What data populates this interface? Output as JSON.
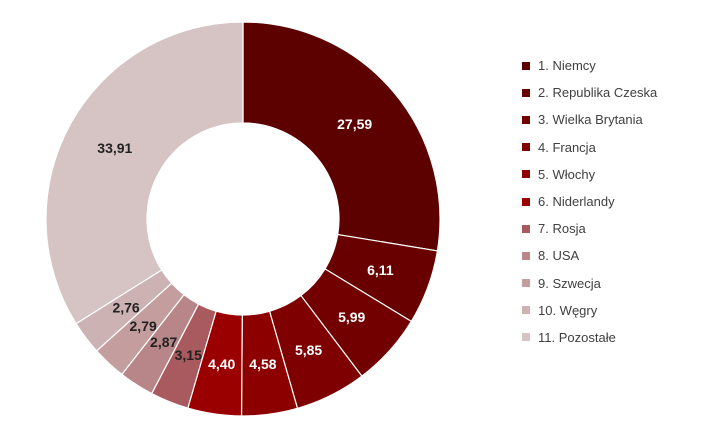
{
  "chart_data": {
    "type": "pie",
    "donut": true,
    "title": "",
    "legend_position": "right",
    "slices": [
      {
        "label": "1. Niemcy",
        "value": 27.59,
        "display": "27,59",
        "color": "#5C0000",
        "label_color": "#ffffff"
      },
      {
        "label": "2. Republika Czeska",
        "value": 6.11,
        "display": "6,11",
        "color": "#680000",
        "label_color": "#ffffff"
      },
      {
        "label": "3. Wielka Brytania",
        "value": 5.99,
        "display": "5,99",
        "color": "#730000",
        "label_color": "#ffffff"
      },
      {
        "label": "4. Francja",
        "value": 5.85,
        "display": "5,85",
        "color": "#7E0000",
        "label_color": "#ffffff"
      },
      {
        "label": "5. Włochy",
        "value": 4.58,
        "display": "4,58",
        "color": "#8C0000",
        "label_color": "#ffffff"
      },
      {
        "label": "6. Niderlandy",
        "value": 4.4,
        "display": "4,40",
        "color": "#9A0000",
        "label_color": "#ffffff"
      },
      {
        "label": "7. Rosja",
        "value": 3.15,
        "display": "3,15",
        "color": "#A85A5E",
        "label_color": "#222222"
      },
      {
        "label": "8. USA",
        "value": 2.87,
        "display": "2,87",
        "color": "#B88688",
        "label_color": "#222222"
      },
      {
        "label": "9. Szwecja",
        "value": 2.79,
        "display": "2,79",
        "color": "#C49E9F",
        "label_color": "#222222"
      },
      {
        "label": "10. Węgry",
        "value": 2.76,
        "display": "2,76",
        "color": "#CDB2B3",
        "label_color": "#222222"
      },
      {
        "label": "11. Pozostałe",
        "value": 33.91,
        "display": "33,91",
        "color": "#D6C4C5",
        "label_color": "#222222"
      }
    ]
  }
}
